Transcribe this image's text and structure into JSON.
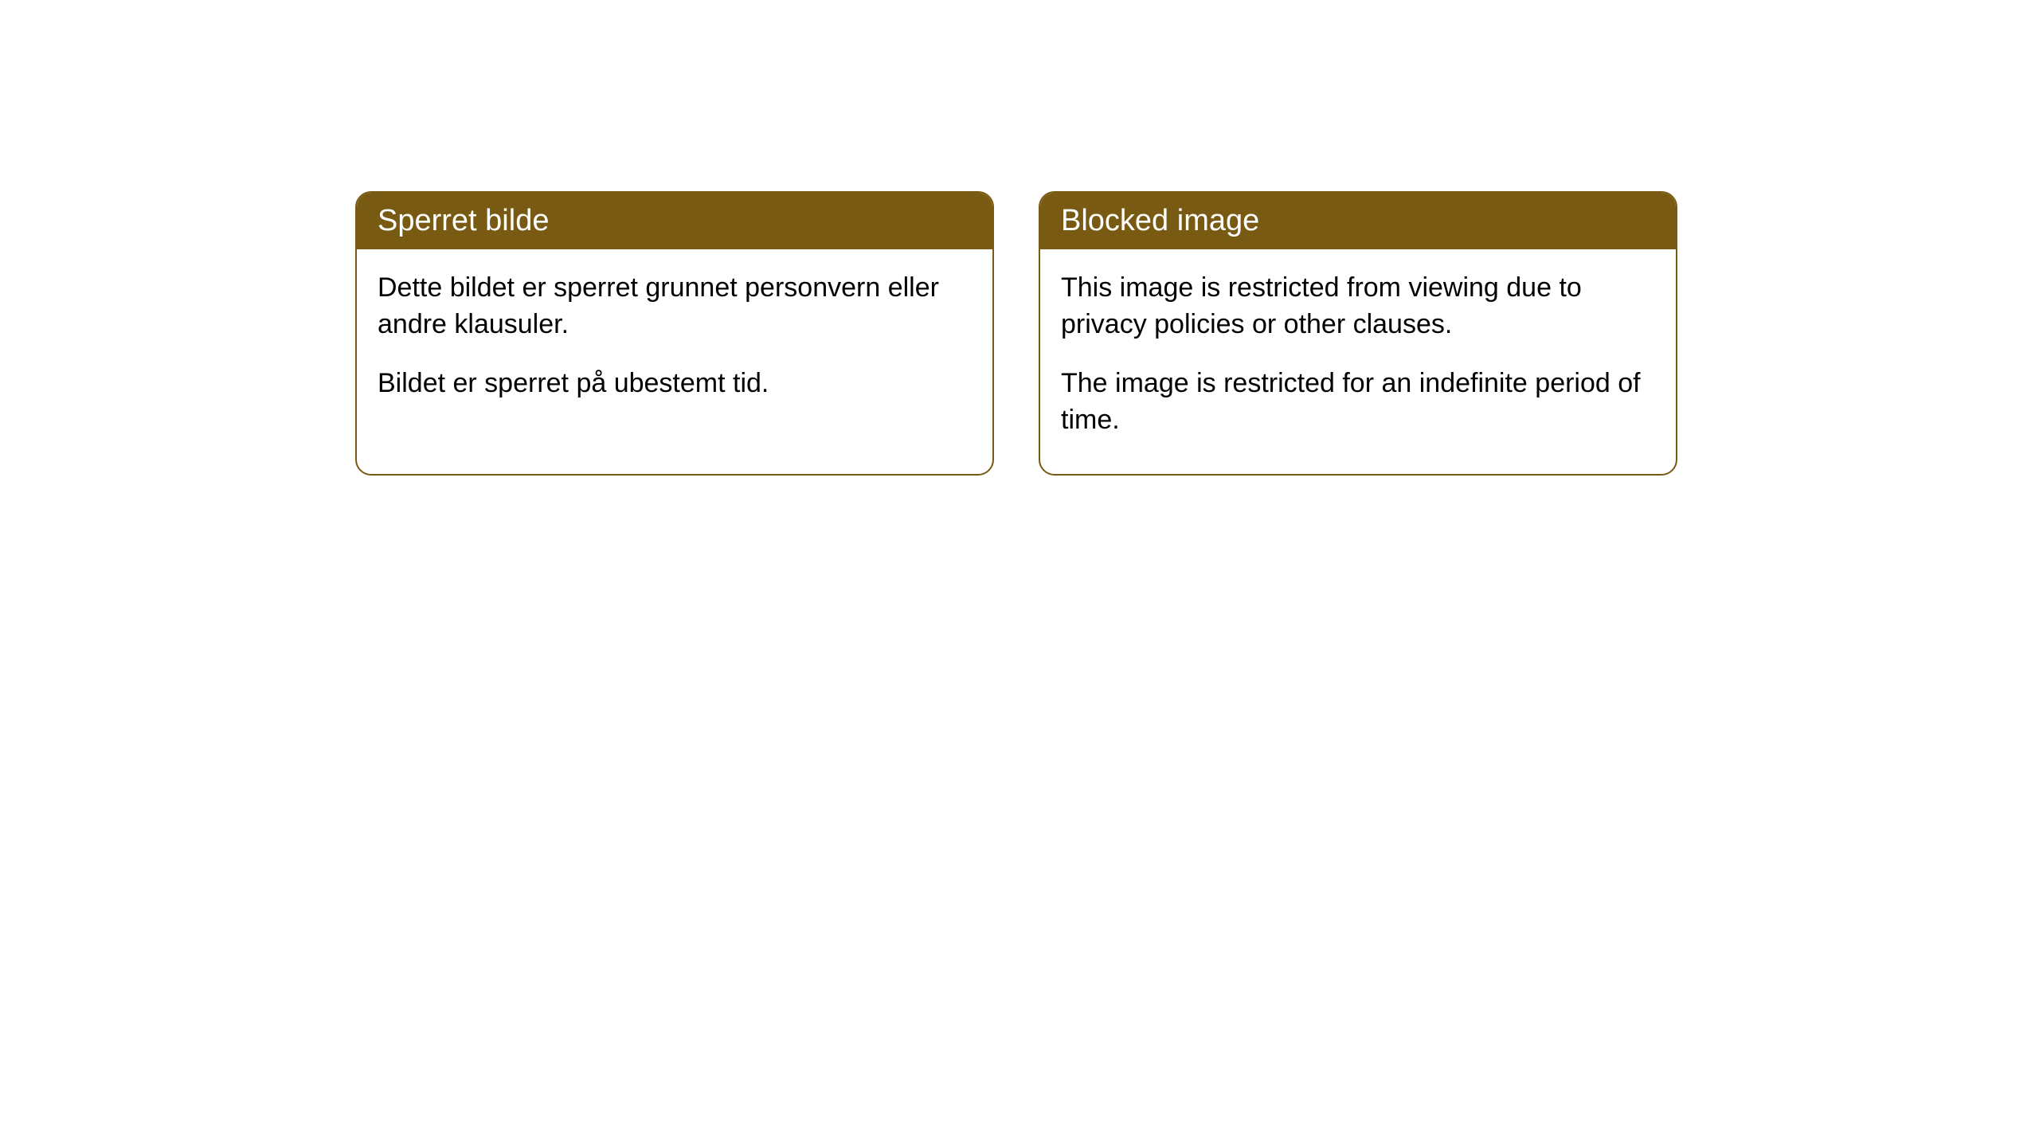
{
  "cards": [
    {
      "title": "Sperret bilde",
      "paragraph1": "Dette bildet er sperret grunnet personvern eller andre klausuler.",
      "paragraph2": "Bildet er sperret på ubestemt tid."
    },
    {
      "title": "Blocked image",
      "paragraph1": "This image is restricted from viewing due to privacy policies or other clauses.",
      "paragraph2": "The image is restricted for an indefinite period of time."
    }
  ],
  "style": {
    "header_bg_color": "#785a12",
    "header_text_color": "#ffffff",
    "border_color": "#785a12",
    "body_bg_color": "#ffffff",
    "body_text_color": "#000000",
    "border_radius": 20,
    "header_fontsize": 38,
    "body_fontsize": 34
  }
}
